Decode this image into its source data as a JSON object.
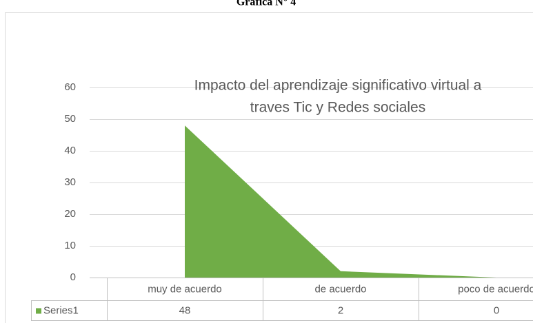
{
  "heading": "Gráfica N° 4",
  "chart_data": {
    "type": "area",
    "title": [
      "Impacto  del aprendizaje significativo  virtual a",
      "traves Tic y Redes sociales"
    ],
    "categories": [
      "muy de acuerdo",
      "de acuerdo",
      "poco de acuerdo"
    ],
    "series": [
      {
        "name": "Series1",
        "color": "#70ad47",
        "values": [
          48,
          2,
          0
        ]
      }
    ],
    "ylim": [
      0,
      60
    ],
    "yticks": [
      0,
      10,
      20,
      30,
      40,
      50,
      60
    ],
    "grid": true,
    "data_table": true
  }
}
